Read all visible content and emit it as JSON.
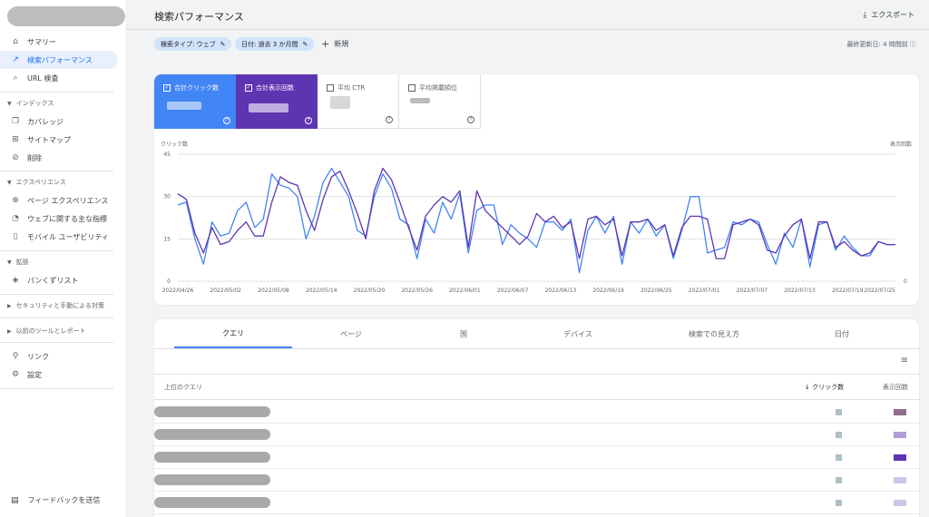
{
  "header": {
    "title": "検索パフォーマンス",
    "export_label": "エクスポート"
  },
  "sidebar": {
    "items": [
      {
        "label": "サマリー",
        "icon": "home-icon"
      },
      {
        "label": "検索パフォーマンス",
        "icon": "trending-up-icon",
        "active": true
      },
      {
        "label": "URL 検査",
        "icon": "search-icon"
      }
    ],
    "sections": [
      {
        "label": "インデックス",
        "items": [
          "カバレッジ",
          "サイトマップ",
          "削除"
        ]
      },
      {
        "label": "エクスペリエンス",
        "items": [
          "ページ エクスペリエンス",
          "ウェブに関する主な指標",
          "モバイル ユーザビリティ"
        ]
      },
      {
        "label": "拡張",
        "items": [
          "パンくずリスト"
        ]
      },
      {
        "label": "セキュリティと手動による対策",
        "items": []
      },
      {
        "label": "以前のツールとレポート",
        "items": []
      }
    ],
    "bottom_items": [
      "リンク",
      "設定"
    ],
    "feedback_label": "フィードバックを送信"
  },
  "filters": {
    "search_type": "検索タイプ: ウェブ",
    "date": "日付: 過去 3 か月間",
    "new_label": "新規",
    "last_updated": "最終更新日: 4 時間前"
  },
  "metrics": {
    "clicks_label": "合計クリック数",
    "impressions_label": "合計表示回数",
    "ctr_label": "平均 CTR",
    "position_label": "平均掲載順位"
  },
  "chart_data": {
    "type": "line",
    "left_axis_label": "クリック数",
    "right_axis_label": "表示回数",
    "ylim": [
      0,
      45
    ],
    "yticks": [
      0,
      15,
      30,
      45
    ],
    "right_ticks": [
      "0"
    ],
    "x_ticks": [
      "2022/04/26",
      "2022/05/02",
      "2022/05/08",
      "2022/05/14",
      "2022/05/20",
      "2022/05/26",
      "2022/06/01",
      "2022/06/07",
      "2022/06/13",
      "2022/06/19",
      "2022/06/25",
      "2022/07/01",
      "2022/07/07",
      "2022/07/13",
      "2022/07/19",
      "2022/07/25"
    ],
    "grid": true,
    "series": [
      {
        "color": "#4285f4",
        "values": [
          27,
          28,
          15,
          6,
          21,
          16,
          17,
          25,
          28,
          19,
          22,
          38,
          34,
          33,
          30,
          15,
          23,
          35,
          40,
          35,
          30,
          18,
          16,
          30,
          38,
          33,
          22,
          20,
          8,
          22,
          17,
          28,
          22,
          31,
          10,
          25,
          27,
          27,
          13,
          20,
          17,
          15,
          12,
          21,
          21,
          18,
          22,
          3,
          18,
          23,
          17,
          23,
          6,
          21,
          17,
          22,
          16,
          20,
          8,
          18,
          30,
          30,
          10,
          11,
          12,
          21,
          20,
          22,
          21,
          13,
          6,
          17,
          12,
          22,
          5,
          20,
          21,
          11,
          16,
          12,
          9,
          9,
          14,
          13,
          13
        ],
        "role": "clicks"
      },
      {
        "color": "#5e35b1",
        "values": [
          31,
          29,
          17,
          10,
          19,
          13,
          14,
          18,
          21,
          16,
          16,
          28,
          37,
          35,
          34,
          25,
          18,
          29,
          37,
          39,
          32,
          24,
          15,
          32,
          40,
          36,
          28,
          19,
          11,
          23,
          27,
          30,
          28,
          32,
          12,
          32,
          25,
          22,
          19,
          16,
          13,
          16,
          24,
          21,
          23,
          19,
          21,
          8,
          22,
          23,
          20,
          22,
          9,
          21,
          21,
          22,
          18,
          20,
          9,
          19,
          23,
          23,
          22,
          8,
          8,
          20,
          21,
          22,
          20,
          11,
          10,
          16,
          20,
          22,
          8,
          21,
          21,
          12,
          14,
          11,
          9,
          10,
          14,
          13,
          13
        ],
        "role": "impressions"
      }
    ]
  },
  "table": {
    "tabs": [
      "クエリ",
      "ページ",
      "国",
      "デバイス",
      "検索での見え方",
      "日付"
    ],
    "column_query": "上位のクエリ",
    "column_clicks": "クリック数",
    "column_impressions": "表示回数",
    "rows": [
      {
        "impr_color": "#8d6e8f"
      },
      {
        "impr_color": "#b39ddb"
      },
      {
        "impr_color": "#5e35b1"
      },
      {
        "impr_color": "#d1c4e9"
      },
      {
        "impr_color": "#d1c4e9"
      }
    ]
  }
}
